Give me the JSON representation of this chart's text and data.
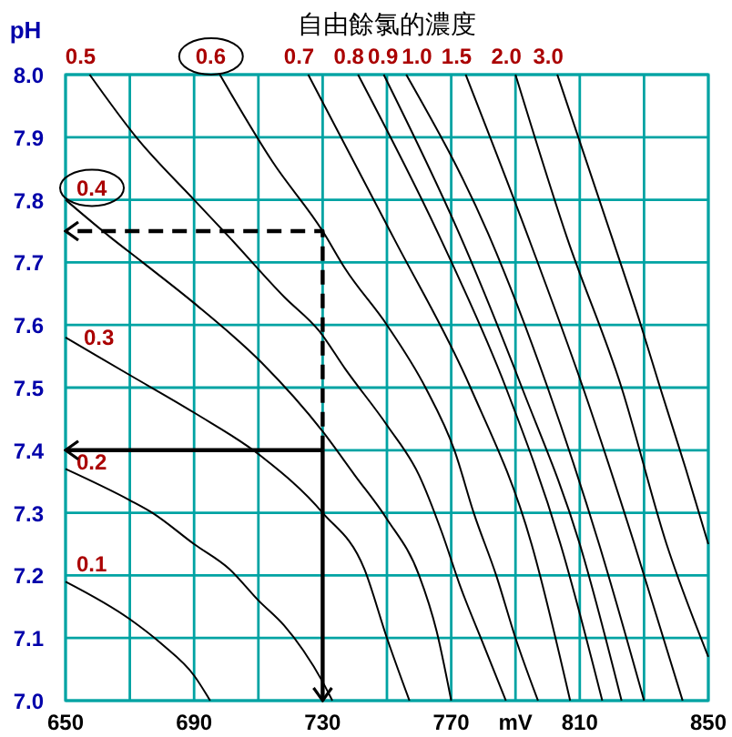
{
  "chart_data": {
    "type": "line",
    "title": "自由餘氯的濃度",
    "xlabel": "mV",
    "ylabel": "pH",
    "xlim": [
      650,
      850
    ],
    "xticks": [
      650,
      {
        "value": 670,
        "label": null
      },
      690,
      {
        "value": 710,
        "label": null
      },
      730,
      {
        "value": 750,
        "label": null
      },
      770,
      {
        "value": 790,
        "label": null
      },
      810,
      {
        "value": 830,
        "label": null
      },
      850
    ],
    "ylim": [
      7,
      8
    ],
    "yticks": [
      {
        "value": 7,
        "label": "7.0"
      },
      7.1,
      7.2,
      7.3,
      7.4,
      7.5,
      7.6,
      7.7,
      7.8,
      7.9,
      {
        "value": 8,
        "label": "8.0"
      }
    ],
    "grid": true,
    "series": [
      {
        "name": "0.1",
        "color": "#000000",
        "x": [
          650,
          670,
          680,
          690,
          695
        ],
        "values": [
          7.19,
          7.13,
          7.09,
          7.04,
          7.0
        ]
      },
      {
        "name": "0.2",
        "color": "#000000",
        "x": [
          650,
          670,
          677,
          690,
          701,
          710,
          718,
          724,
          730,
          733
        ],
        "values": [
          7.37,
          7.32,
          7.3,
          7.25,
          7.21,
          7.16,
          7.12,
          7.08,
          7.03,
          7.0
        ]
      },
      {
        "name": "0.3",
        "color": "#000000",
        "x": [
          650,
          670,
          690,
          711,
          730,
          743,
          750,
          757
        ],
        "values": [
          7.58,
          7.52,
          7.46,
          7.39,
          7.3,
          7.21,
          7.1,
          7.0
        ]
      },
      {
        "name": "0.4",
        "color": "#000000",
        "x": [
          650,
          664,
          674,
          690,
          711,
          730,
          740,
          750,
          760,
          765.5,
          770
        ],
        "values": [
          7.8,
          7.74,
          7.7,
          7.635,
          7.54,
          7.43,
          7.36,
          7.29,
          7.2,
          7.11,
          7.0
        ]
      },
      {
        "name": "0.5",
        "color": "#000000",
        "x": [
          657.5,
          672,
          690,
          701,
          718,
          729,
          737,
          750,
          760,
          767,
          773,
          780,
          787
        ],
        "values": [
          8.0,
          7.9,
          7.8,
          7.74,
          7.645,
          7.59,
          7.53,
          7.44,
          7.36,
          7.27,
          7.18,
          7.09,
          7.0
        ]
      },
      {
        "name": "0.6",
        "color": "#000000",
        "x": [
          698,
          714.5,
          730,
          737,
          750,
          762,
          771,
          777,
          784,
          790,
          797
        ],
        "values": [
          8.0,
          7.86,
          7.75,
          7.69,
          7.6,
          7.5,
          7.4,
          7.3,
          7.2,
          7.1,
          7.0
        ]
      },
      {
        "name": "0.7",
        "color": "#000000",
        "x": [
          725.5,
          752,
          776,
          795,
          807
        ],
        "values": [
          8.0,
          7.74,
          7.5,
          7.25,
          7.0
        ]
      },
      {
        "name": "0.8",
        "color": "#000000",
        "x": [
          741,
          766.5,
          787,
          804,
          817
        ],
        "values": [
          8.0,
          7.74,
          7.5,
          7.25,
          7.0
        ]
      },
      {
        "name": "0.9",
        "color": "#000000",
        "x": [
          749,
          773,
          792,
          810,
          823
        ],
        "values": [
          8.0,
          7.74,
          7.5,
          7.25,
          7.0
        ]
      },
      {
        "name": "1.0",
        "color": "#000000",
        "x": [
          756,
          782,
          800,
          816,
          830
        ],
        "values": [
          8.0,
          7.74,
          7.5,
          7.25,
          7.0
        ]
      },
      {
        "name": "1.5",
        "color": "#000000",
        "x": [
          774.5,
          794,
          811,
          827,
          842
        ],
        "values": [
          8.0,
          7.74,
          7.5,
          7.25,
          7.0
        ]
      },
      {
        "name": "2.0",
        "color": "#000000",
        "x": [
          790,
          806,
          823,
          837,
          850
        ],
        "values": [
          8.0,
          7.74,
          7.5,
          7.25,
          7.07
        ]
      },
      {
        "name": "3.0",
        "color": "#000000",
        "x": [
          803,
          820,
          829,
          835,
          843,
          850
        ],
        "values": [
          8.0,
          7.74,
          7.6,
          7.5,
          7.37,
          7.25
        ]
      },
      {
        "color": "#000000",
        "line_style": "solid",
        "x": [
          730,
          650
        ],
        "values": [
          7.4,
          7.4
        ]
      },
      {
        "color": "#000000",
        "line_style": "solid",
        "x": [
          730,
          730
        ],
        "values": [
          7.4,
          7.0
        ]
      },
      {
        "color": "#000000",
        "line_style": "dashed",
        "x": [
          730,
          730,
          650
        ],
        "values": [
          7.4,
          7.75,
          7.75
        ]
      }
    ]
  }
}
